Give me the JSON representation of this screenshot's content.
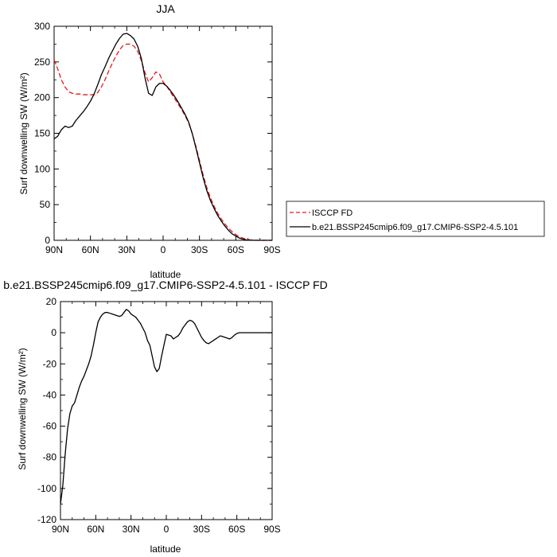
{
  "chart_data": [
    {
      "type": "line",
      "title": "JJA",
      "xlabel": "latitude",
      "ylabel": "Surf downwelling SW (W/m²)",
      "xlim": [
        90,
        -90
      ],
      "ylim": [
        0,
        300
      ],
      "x_ticks": [
        90,
        60,
        30,
        0,
        -30,
        -60,
        -90
      ],
      "x_tick_labels": [
        "90N",
        "60N",
        "30N",
        "0",
        "30S",
        "60S",
        "90S"
      ],
      "y_ticks": [
        0,
        50,
        100,
        150,
        200,
        250,
        300
      ],
      "y_tick_labels": [
        "0",
        "50",
        "100",
        "150",
        "200",
        "250",
        "300"
      ],
      "legend_position": "right",
      "series": [
        {
          "name": "ISCCP FD",
          "color": "#e8191e",
          "style": "dashed",
          "x": [
            90,
            87,
            84,
            81,
            78,
            75,
            72,
            69,
            66,
            63,
            60,
            57,
            54,
            51,
            48,
            45,
            42,
            39,
            36,
            33,
            30,
            27,
            24,
            21,
            18,
            15,
            12,
            9,
            6,
            3,
            0,
            -3,
            -6,
            -9,
            -12,
            -15,
            -18,
            -21,
            -24,
            -27,
            -30,
            -33,
            -36,
            -39,
            -42,
            -45,
            -48,
            -51,
            -54,
            -57,
            -60,
            -63,
            -66,
            -69,
            -72,
            -75,
            -78,
            -81,
            -84,
            -87,
            -90
          ],
          "values": [
            253,
            240,
            225,
            215,
            208,
            206,
            205,
            205,
            204,
            204,
            204,
            204,
            207,
            215,
            225,
            237,
            248,
            258,
            267,
            273,
            275,
            275,
            272,
            265,
            252,
            235,
            222,
            228,
            236,
            233,
            222,
            216,
            208,
            200,
            192,
            184,
            175,
            165,
            150,
            132,
            112,
            92,
            74,
            60,
            48,
            38,
            30,
            23,
            17,
            12,
            8,
            5,
            3,
            1.5,
            0.5,
            0.2,
            0,
            0,
            0,
            0,
            0
          ]
        },
        {
          "name": "b.e21.BSSP245cmip6.f09_g17.CMIP6-SSP2-4.5.101",
          "color": "#000000",
          "style": "solid",
          "x": [
            90,
            87,
            84,
            81,
            78,
            75,
            72,
            69,
            66,
            63,
            60,
            57,
            54,
            51,
            48,
            45,
            42,
            39,
            36,
            33,
            30,
            27,
            24,
            21,
            18,
            15,
            12,
            9,
            6,
            3,
            0,
            -3,
            -6,
            -9,
            -12,
            -15,
            -18,
            -21,
            -24,
            -27,
            -30,
            -33,
            -36,
            -39,
            -42,
            -45,
            -48,
            -51,
            -54,
            -57,
            -60,
            -63,
            -66,
            -69,
            -72,
            -75,
            -78,
            -81,
            -84,
            -87,
            -90
          ],
          "values": [
            142,
            146,
            155,
            160,
            158,
            160,
            168,
            174,
            180,
            187,
            195,
            205,
            218,
            232,
            243,
            255,
            265,
            275,
            283,
            289,
            290,
            287,
            282,
            272,
            255,
            228,
            206,
            203,
            215,
            220,
            220,
            216,
            210,
            203,
            195,
            186,
            177,
            166,
            150,
            130,
            109,
            88,
            70,
            56,
            45,
            35,
            27,
            20,
            14,
            9,
            6,
            3,
            1.5,
            0.5,
            0.2,
            0,
            0,
            0,
            0,
            0,
            0
          ]
        }
      ]
    },
    {
      "type": "line",
      "title": "b.e21.BSSP245cmip6.f09_g17.CMIP6-SSP2-4.5.101 - ISCCP FD",
      "xlabel": "latitude",
      "ylabel": "Surf downwelling SW (W/m²)",
      "xlim": [
        90,
        -90
      ],
      "ylim": [
        -120,
        20
      ],
      "x_ticks": [
        90,
        60,
        30,
        0,
        -30,
        -60,
        -90
      ],
      "x_tick_labels": [
        "90N",
        "60N",
        "30N",
        "0",
        "30S",
        "60S",
        "90S"
      ],
      "y_ticks": [
        20,
        0,
        -20,
        -40,
        -60,
        -80,
        -100,
        -120
      ],
      "y_tick_labels": [
        "20",
        "0",
        "-20",
        "-40",
        "-60",
        "-80",
        "-100",
        "-120"
      ],
      "series": [
        {
          "color": "#000000",
          "style": "solid",
          "x": [
            90,
            88,
            86,
            84,
            82,
            80,
            78,
            76,
            74,
            72,
            70,
            68,
            66,
            64,
            62,
            60,
            58,
            56,
            54,
            52,
            50,
            48,
            46,
            44,
            42,
            40,
            38,
            36,
            34,
            32,
            30,
            28,
            26,
            24,
            22,
            20,
            18,
            16,
            14,
            12,
            10,
            8,
            6,
            4,
            2,
            0,
            -2,
            -4,
            -6,
            -8,
            -10,
            -12,
            -14,
            -16,
            -18,
            -20,
            -22,
            -24,
            -26,
            -28,
            -30,
            -32,
            -34,
            -36,
            -38,
            -40,
            -42,
            -44,
            -46,
            -48,
            -50,
            -52,
            -54,
            -56,
            -58,
            -60,
            -62,
            -64,
            -66,
            -68,
            -70,
            -72,
            -74,
            -76,
            -78,
            -80,
            -82,
            -84,
            -86,
            -88,
            -90
          ],
          "values": [
            -110,
            -98,
            -78,
            -62,
            -52,
            -47,
            -45,
            -40,
            -35,
            -31,
            -28,
            -24,
            -20,
            -15,
            -8,
            0,
            7,
            10,
            12,
            13,
            13,
            12.5,
            12,
            11.5,
            11,
            10.5,
            11,
            13,
            15,
            14,
            12,
            11,
            10,
            8,
            6,
            3,
            0,
            -5,
            -8,
            -15,
            -22,
            -25,
            -23,
            -15,
            -8,
            -1,
            -1.5,
            -2,
            -4,
            -3,
            -2,
            0,
            3,
            5,
            7,
            8,
            7.5,
            6,
            3,
            0,
            -3,
            -5,
            -6.5,
            -7,
            -6,
            -5,
            -4,
            -3,
            -2,
            -2.5,
            -3,
            -3.5,
            -4,
            -3,
            -1.5,
            -0.5,
            0,
            0,
            0,
            0,
            0,
            0,
            0,
            0,
            0,
            0,
            0,
            0,
            0,
            0,
            0
          ]
        }
      ]
    }
  ]
}
